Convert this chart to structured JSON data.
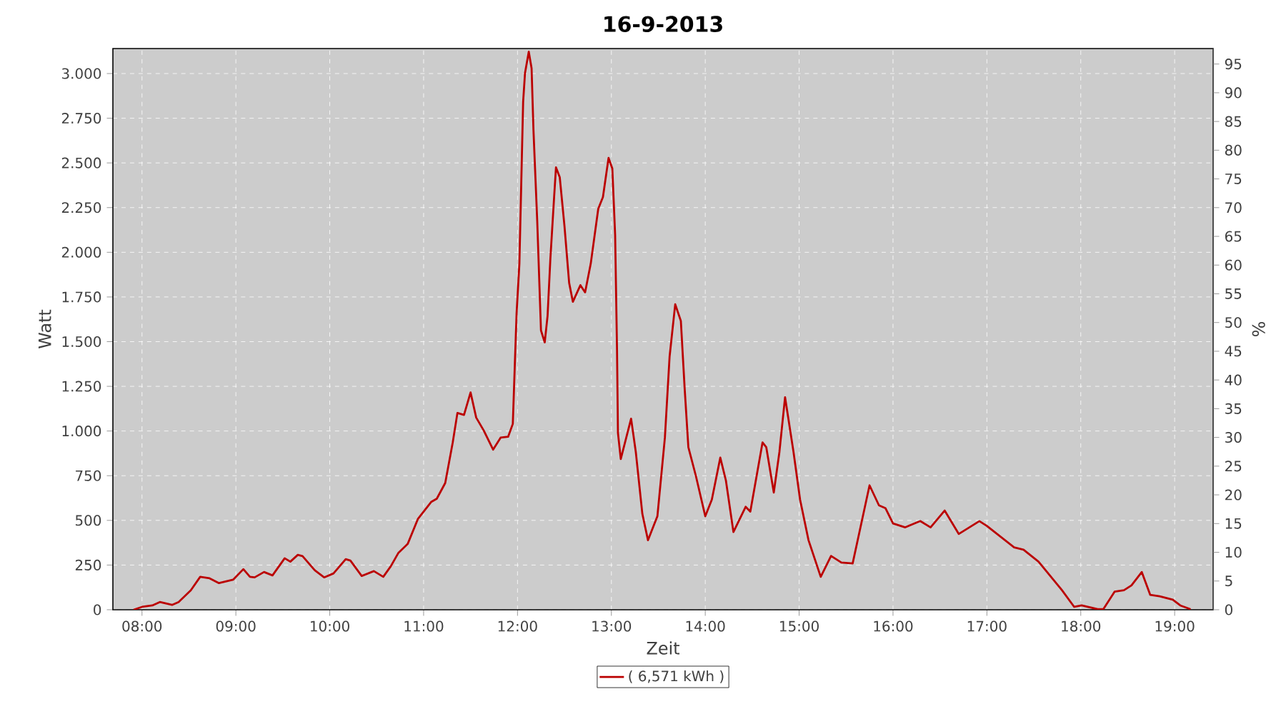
{
  "chart_data": {
    "type": "line",
    "title": "16-9-2013",
    "xlabel": "Zeit",
    "ylabel": "Watt",
    "y2label": "%",
    "x": [
      7.91,
      8.0,
      8.11,
      8.19,
      8.32,
      8.39,
      8.52,
      8.62,
      8.72,
      8.82,
      8.97,
      9.08,
      9.15,
      9.2,
      9.3,
      9.39,
      9.52,
      9.58,
      9.66,
      9.71,
      9.84,
      9.94,
      10.04,
      10.17,
      10.22,
      10.34,
      10.47,
      10.57,
      10.65,
      10.73,
      10.83,
      10.94,
      11.08,
      11.14,
      11.23,
      11.31,
      11.36,
      11.43,
      11.5,
      11.56,
      11.64,
      11.74,
      11.82,
      11.9,
      11.95,
      11.99,
      12.02,
      12.06,
      12.08,
      12.12,
      12.15,
      12.17,
      12.21,
      12.25,
      12.29,
      12.32,
      12.35,
      12.39,
      12.41,
      12.45,
      12.5,
      12.55,
      12.59,
      12.67,
      12.72,
      12.78,
      12.86,
      12.91,
      12.97,
      13.01,
      13.04,
      13.06,
      13.07,
      13.1,
      13.21,
      13.26,
      13.33,
      13.39,
      13.49,
      13.57,
      13.62,
      13.68,
      13.74,
      13.78,
      13.82,
      13.9,
      14.0,
      14.07,
      14.16,
      14.22,
      14.3,
      14.43,
      14.48,
      14.61,
      14.65,
      14.73,
      14.79,
      14.85,
      14.94,
      15.01,
      15.1,
      15.23,
      15.34,
      15.45,
      15.57,
      15.75,
      15.85,
      15.92,
      16.0,
      16.13,
      16.29,
      16.4,
      16.55,
      16.7,
      16.92,
      17.0,
      17.29,
      17.39,
      17.55,
      17.8,
      17.93,
      18.01,
      18.18,
      18.24,
      18.36,
      18.46,
      18.54,
      18.65,
      18.74,
      18.84,
      18.98,
      19.06,
      19.17
    ],
    "series": [
      {
        "name": "( 6,571 kWh )",
        "color": "#bb0000",
        "values": [
          0,
          16,
          24,
          43,
          27,
          43,
          109,
          184,
          176,
          149,
          168,
          227,
          184,
          181,
          211,
          192,
          288,
          269,
          307,
          300,
          221,
          181,
          203,
          283,
          275,
          189,
          216,
          184,
          243,
          317,
          368,
          509,
          603,
          621,
          709,
          936,
          1101,
          1090,
          1216,
          1075,
          1003,
          896,
          963,
          968,
          1040,
          1656,
          1936,
          2843,
          3003,
          3122,
          3029,
          2683,
          2176,
          1563,
          1496,
          1643,
          1963,
          2309,
          2475,
          2420,
          2149,
          1829,
          1723,
          1816,
          1776,
          1936,
          2243,
          2309,
          2528,
          2469,
          2096,
          1456,
          989,
          843,
          1069,
          883,
          536,
          389,
          523,
          963,
          1416,
          1709,
          1616,
          1243,
          909,
          749,
          523,
          616,
          851,
          723,
          435,
          576,
          549,
          936,
          909,
          656,
          883,
          1189,
          883,
          616,
          389,
          184,
          301,
          264,
          259,
          696,
          584,
          568,
          483,
          461,
          496,
          461,
          555,
          424,
          496,
          469,
          349,
          336,
          269,
          109,
          16,
          24,
          3,
          3,
          101,
          109,
          136,
          211,
          83,
          75,
          56,
          24,
          3
        ]
      }
    ],
    "xlim": [
      7.69,
      19.41
    ],
    "xticks": [
      {
        "value": 8,
        "label": "08:00"
      },
      {
        "value": 9,
        "label": "09:00"
      },
      {
        "value": 10,
        "label": "10:00"
      },
      {
        "value": 11,
        "label": "11:00"
      },
      {
        "value": 12,
        "label": "12:00"
      },
      {
        "value": 13,
        "label": "13:00"
      },
      {
        "value": 14,
        "label": "14:00"
      },
      {
        "value": 15,
        "label": "15:00"
      },
      {
        "value": 16,
        "label": "16:00"
      },
      {
        "value": 17,
        "label": "17:00"
      },
      {
        "value": 18,
        "label": "18:00"
      },
      {
        "value": 19,
        "label": "19:00"
      }
    ],
    "ylim": [
      0,
      3140
    ],
    "yticks": [
      0,
      250,
      500,
      750,
      {
        "value": 1000,
        "label": "1.000"
      },
      {
        "value": 1250,
        "label": "1.250"
      },
      {
        "value": 1500,
        "label": "1.500"
      },
      {
        "value": 1750,
        "label": "1.750"
      },
      {
        "value": 2000,
        "label": "2.000"
      },
      {
        "value": 2250,
        "label": "2.250"
      },
      {
        "value": 2500,
        "label": "2.500"
      },
      {
        "value": 2750,
        "label": "2.750"
      },
      {
        "value": 3000,
        "label": "3.000"
      }
    ],
    "y2lim": [
      0,
      97.7
    ],
    "y2ticks": [
      0,
      5,
      10,
      15,
      20,
      25,
      30,
      35,
      40,
      45,
      50,
      55,
      60,
      65,
      70,
      75,
      80,
      85,
      90,
      95
    ],
    "grid": true,
    "legend": "bottom"
  }
}
